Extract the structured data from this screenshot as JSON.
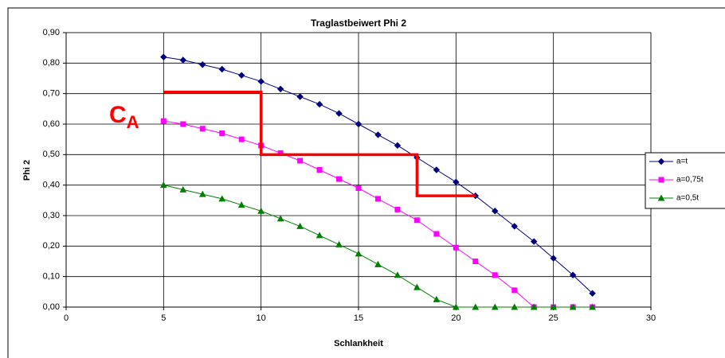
{
  "chart_data": {
    "type": "line",
    "title": "Traglastbeiwert Phi 2",
    "x_label": "Schlankheit",
    "y_label": "Phi 2",
    "x": [
      5,
      6,
      7,
      8,
      9,
      10,
      11,
      12,
      13,
      14,
      15,
      16,
      17,
      18,
      19,
      20,
      21,
      22,
      23,
      24,
      25,
      26,
      27
    ],
    "series": [
      {
        "name": "a=t",
        "color": "#000080",
        "marker": "diamond",
        "values": [
          0.82,
          0.81,
          0.795,
          0.78,
          0.76,
          0.74,
          0.715,
          0.69,
          0.665,
          0.635,
          0.6,
          0.565,
          0.53,
          0.49,
          0.45,
          0.41,
          0.365,
          0.315,
          0.265,
          0.215,
          0.16,
          0.105,
          0.045
        ]
      },
      {
        "name": "a=0,75t",
        "color": "#ff00ff",
        "marker": "square",
        "values": [
          0.61,
          0.6,
          0.585,
          0.57,
          0.55,
          0.53,
          0.505,
          0.48,
          0.45,
          0.42,
          0.39,
          0.355,
          0.32,
          0.285,
          0.24,
          0.195,
          0.15,
          0.105,
          0.055,
          0,
          0,
          0,
          0
        ]
      },
      {
        "name": "a=0,5t",
        "color": "#008000",
        "marker": "triangle",
        "values": [
          0.4,
          0.385,
          0.37,
          0.355,
          0.335,
          0.315,
          0.29,
          0.265,
          0.235,
          0.205,
          0.175,
          0.14,
          0.105,
          0.065,
          0.025,
          0,
          0,
          0,
          0,
          0,
          0,
          0,
          0
        ]
      }
    ],
    "step_line": {
      "color": "#ff0000",
      "x": [
        5,
        10,
        10,
        18,
        18,
        21
      ],
      "y": [
        0.705,
        0.705,
        0.5,
        0.5,
        0.365,
        0.365
      ]
    },
    "annotation": {
      "text": "C",
      "subscript": "A",
      "color": "#ff0000"
    },
    "xlim": [
      0,
      30
    ],
    "xticks": [
      0,
      5,
      10,
      15,
      20,
      25,
      30
    ],
    "ylim": [
      0,
      0.9
    ],
    "yticks": [
      {
        "value": 0,
        "label": "0,00"
      },
      {
        "value": 0.1,
        "label": "0,10"
      },
      {
        "value": 0.2,
        "label": "0,20"
      },
      {
        "value": 0.3,
        "label": "0,30"
      },
      {
        "value": 0.4,
        "label": "0,40"
      },
      {
        "value": 0.5,
        "label": "0,50"
      },
      {
        "value": 0.6,
        "label": "0,60"
      },
      {
        "value": 0.7,
        "label": "0,70"
      },
      {
        "value": 0.8,
        "label": "0,80"
      },
      {
        "value": 0.9,
        "label": "0,90"
      }
    ],
    "grid": true,
    "legend": "right"
  }
}
